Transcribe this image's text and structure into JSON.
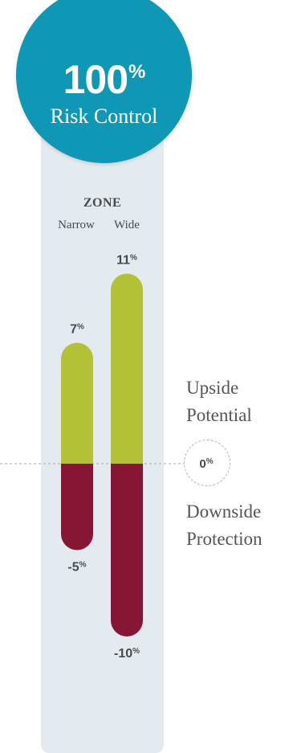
{
  "badge": {
    "value": "100",
    "suffix": "%",
    "label": "Risk Control"
  },
  "zone": {
    "title": "ZONE",
    "narrow_label": "Narrow",
    "wide_label": "Wide"
  },
  "side_labels": {
    "upside": [
      "Upside",
      "Potential"
    ],
    "downside": [
      "Downside",
      "Protection"
    ]
  },
  "colors": {
    "badge": "#0f98b6",
    "upside": "#b2c135",
    "downside": "#861634",
    "panel": "#e3ebf0",
    "label_text": "#4a4a4a"
  },
  "chart_data": {
    "type": "bar",
    "categories": [
      "Narrow",
      "Wide"
    ],
    "series": [
      {
        "name": "Upside Potential",
        "values": [
          7,
          11
        ]
      },
      {
        "name": "Downside Protection",
        "values": [
          -5,
          -10
        ]
      }
    ],
    "value_labels": {
      "upside": [
        "7%",
        "11%"
      ],
      "downside": [
        "-5%",
        "-10%"
      ]
    },
    "zero_label": "0%",
    "ylim": [
      -10,
      11
    ],
    "grid": false,
    "legend": "right"
  }
}
